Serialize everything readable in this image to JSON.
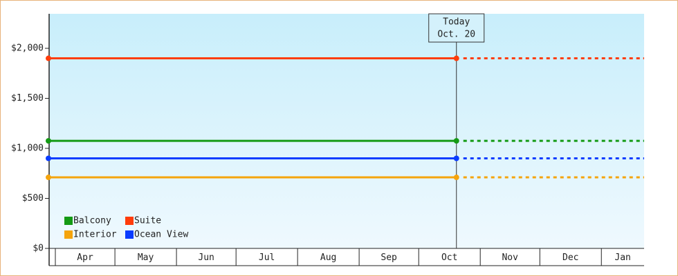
{
  "chart_data": {
    "type": "line",
    "categories": [
      "Apr",
      "May",
      "Jun",
      "Jul",
      "Aug",
      "Sep",
      "Oct",
      "Nov",
      "Dec",
      "Jan"
    ],
    "ylim": [
      0,
      2345
    ],
    "yticks": [
      {
        "value": 0,
        "label": "$0"
      },
      {
        "value": 500,
        "label": "$500"
      },
      {
        "value": 1000,
        "label": "$1,000"
      },
      {
        "value": 1500,
        "label": "$1,500"
      },
      {
        "value": 2000,
        "label": "$2,000"
      }
    ],
    "today": {
      "title": "Today",
      "date": "Oct. 20"
    },
    "series": [
      {
        "name": "Balcony",
        "color": "#149a14",
        "value": 1075
      },
      {
        "name": "Suite",
        "color": "#ff3c0a",
        "value": 1900
      },
      {
        "name": "Interior",
        "color": "#f5a40c",
        "value": 710
      },
      {
        "name": "Ocean View",
        "color": "#0a3cff",
        "value": 900
      }
    ]
  }
}
